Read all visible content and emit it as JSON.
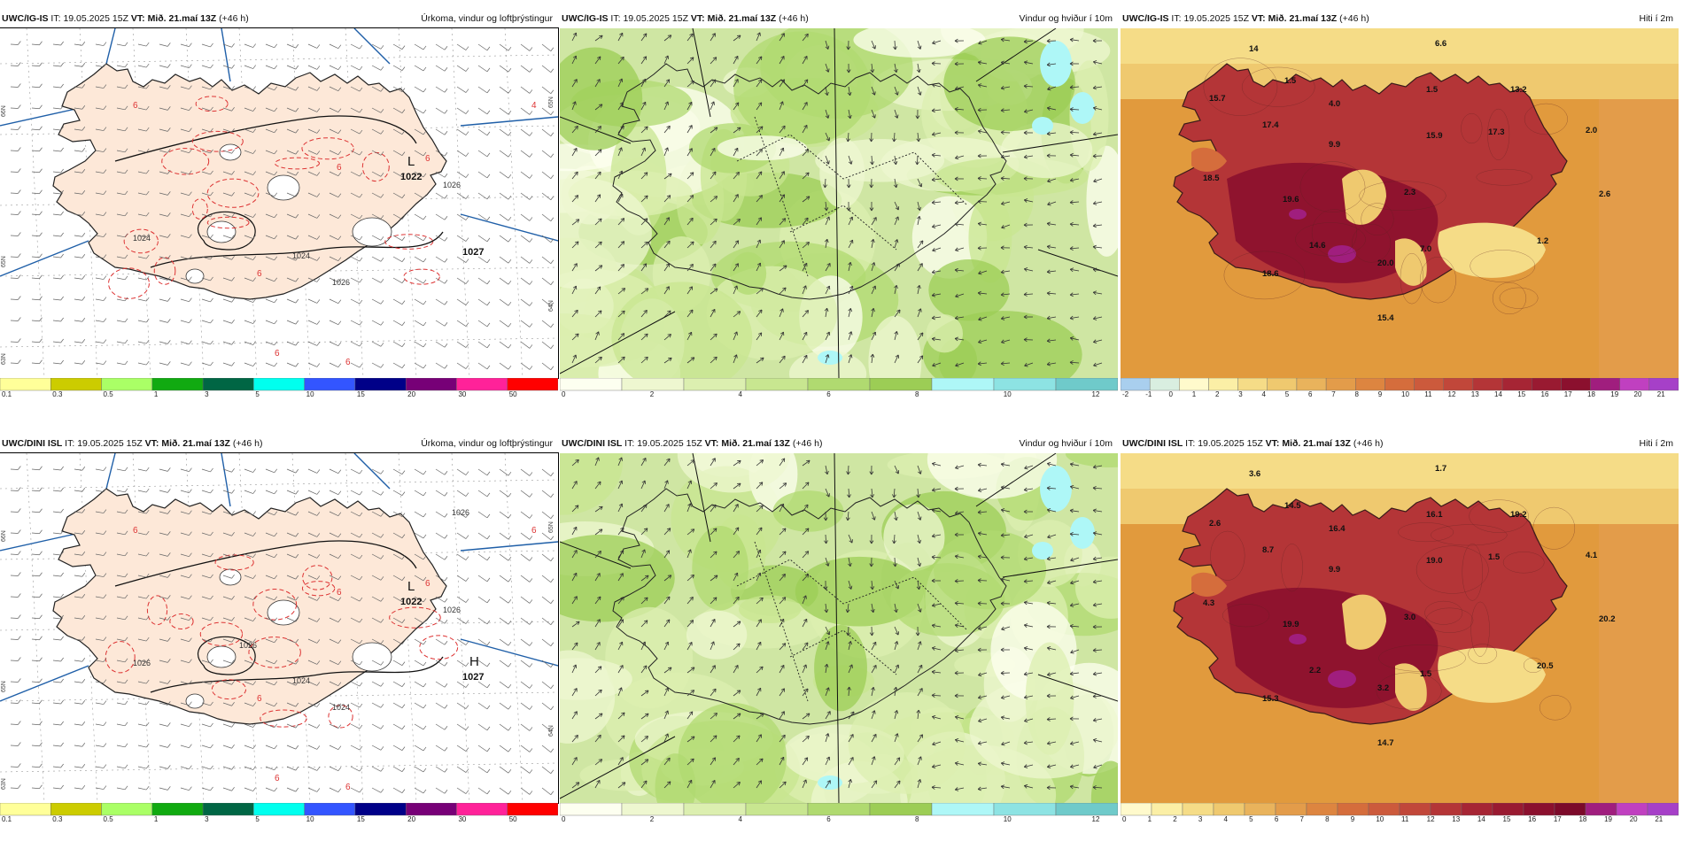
{
  "panels": [
    {
      "id": "igis-precip",
      "model": "UWC/IG-IS",
      "it_label": "IT:",
      "it": "19.05.2025 15Z",
      "vt_label": "VT:",
      "vt": "Mið. 21.maí 13Z",
      "lead": "(+46 h)",
      "title": "Úrkoma, vindur og loftþrýstingur",
      "type": "precip",
      "colorbar": {
        "colors": [
          "#ffff99",
          "#cccc00",
          "#aaff66",
          "#11aa11",
          "#006644",
          "#00ffee",
          "#3355ff",
          "#000088",
          "#770077",
          "#ff2299",
          "#ff0000"
        ],
        "ticks": [
          "0.1",
          "0.3",
          "0.5",
          "1",
          "3",
          "5",
          "10",
          "15",
          "20",
          "30",
          "50"
        ]
      },
      "pressure_labels": [
        {
          "text": "L",
          "value": "1022"
        },
        {
          "text": "",
          "value": "1027"
        }
      ],
      "isobar_labels": [
        "1024",
        "1024",
        "1026",
        "1026"
      ],
      "precip_labels": [
        "6",
        "6",
        "6",
        "6",
        "6",
        "6",
        "4"
      ]
    },
    {
      "id": "igis-wind",
      "model": "UWC/IG-IS",
      "it_label": "IT:",
      "it": "19.05.2025 15Z",
      "vt_label": "VT:",
      "vt": "Mið. 21.maí 13Z",
      "lead": "(+46 h)",
      "title": "Vindur og hviður í 10m",
      "type": "wind",
      "colorbar": {
        "colors": [
          "#fdfff0",
          "#eef7d0",
          "#dcefb0",
          "#c8e690",
          "#b0da70",
          "#9ccd55",
          "#aef7f7",
          "#8de3e3",
          "#6fcaca"
        ],
        "ticks": [
          "0",
          "2",
          "4",
          "6",
          "8",
          "10",
          "12"
        ]
      }
    },
    {
      "id": "igis-temp",
      "model": "UWC/IG-IS",
      "it_label": "IT:",
      "it": "19.05.2025 15Z",
      "vt_label": "VT:",
      "vt": "Mið. 21.maí 13Z",
      "lead": "(+46 h)",
      "title": "Hiti í 2m",
      "type": "temp",
      "colorbar": {
        "colors": [
          "#a9cfee",
          "#d9eee0",
          "#fffacc",
          "#fbefa6",
          "#f5dc87",
          "#efc96f",
          "#e9b35c",
          "#e39c4a",
          "#dd8540",
          "#d56d3c",
          "#cc5a3c",
          "#c1473a",
          "#b43537",
          "#a62534",
          "#991a31",
          "#8b102e",
          "#a01e7e",
          "#c040c0",
          "#a640c8"
        ],
        "ticks": [
          "-2",
          "-1",
          "0",
          "1",
          "2",
          "3",
          "4",
          "5",
          "6",
          "7",
          "8",
          "9",
          "10",
          "11",
          "12",
          "13",
          "14",
          "15",
          "16",
          "17",
          "18",
          "19",
          "20",
          "21"
        ]
      },
      "value_labels": [
        "6.6",
        "14",
        "1.5",
        "15.7",
        "4.0",
        "1.5",
        "13.2",
        "17.4",
        "9.9",
        "15.9",
        "17.3",
        "2.0",
        "18.5",
        "19.6",
        "2.3",
        "2.6",
        "14.6",
        "20.0",
        "7.0",
        "1.2",
        "18.6",
        "15.4"
      ]
    },
    {
      "id": "dini-precip",
      "model": "UWC/DINI ISL",
      "it_label": "IT:",
      "it": "19.05.2025 15Z",
      "vt_label": "VT:",
      "vt": "Mið. 21.maí 13Z",
      "lead": "(+46 h)",
      "title": "Úrkoma, vindur og loftþrýstingur",
      "type": "precip",
      "colorbar": {
        "colors": [
          "#ffff99",
          "#cccc00",
          "#aaff66",
          "#11aa11",
          "#006644",
          "#00ffee",
          "#3355ff",
          "#000088",
          "#770077",
          "#ff2299",
          "#ff0000"
        ],
        "ticks": [
          "0.1",
          "0.3",
          "0.5",
          "1",
          "3",
          "5",
          "10",
          "15",
          "20",
          "30",
          "50"
        ]
      },
      "pressure_labels": [
        {
          "text": "L",
          "value": "1022"
        },
        {
          "text": "H",
          "value": "1027"
        }
      ],
      "isobar_labels": [
        "1026",
        "1024",
        "1024",
        "1026",
        "1026",
        "1026"
      ],
      "precip_labels": [
        "6",
        "6",
        "6",
        "6",
        "6",
        "6",
        "6"
      ]
    },
    {
      "id": "dini-wind",
      "model": "UWC/DINI ISL",
      "it_label": "IT:",
      "it": "19.05.2025 15Z",
      "vt_label": "VT:",
      "vt": "Mið. 21.maí 13Z",
      "lead": "(+46 h)",
      "title": "Vindur og hviður í 10m",
      "type": "wind",
      "colorbar": {
        "colors": [
          "#fdfff0",
          "#eef7d0",
          "#dcefb0",
          "#c8e690",
          "#b0da70",
          "#9ccd55",
          "#aef7f7",
          "#8de3e3",
          "#6fcaca"
        ],
        "ticks": [
          "0",
          "2",
          "4",
          "6",
          "8",
          "10",
          "12"
        ]
      }
    },
    {
      "id": "dini-temp",
      "model": "UWC/DINI ISL",
      "it_label": "IT:",
      "it": "19.05.2025 15Z",
      "vt_label": "VT:",
      "vt": "Mið. 21.maí 13Z",
      "lead": "(+46 h)",
      "title": "Hiti í 2m",
      "type": "temp",
      "colorbar": {
        "colors": [
          "#fffacc",
          "#fbefa6",
          "#f5dc87",
          "#efc96f",
          "#e9b35c",
          "#e39c4a",
          "#dd8540",
          "#d56d3c",
          "#cc5a3c",
          "#c1473a",
          "#b43537",
          "#a62534",
          "#991a31",
          "#8b102e",
          "#7c0a2a",
          "#a01e7e",
          "#c040c0",
          "#a640c8"
        ],
        "ticks": [
          "0",
          "1",
          "2",
          "3",
          "4",
          "5",
          "6",
          "7",
          "8",
          "9",
          "10",
          "11",
          "12",
          "13",
          "14",
          "15",
          "16",
          "17",
          "18",
          "19",
          "20",
          "21"
        ]
      },
      "value_labels": [
        "1.7",
        "3.6",
        "14.5",
        "2.6",
        "16.4",
        "16.1",
        "19.2",
        "8.7",
        "9.9",
        "19.0",
        "1.5",
        "4.1",
        "4.3",
        "19.9",
        "3.0",
        "20.2",
        "2.2",
        "3.2",
        "1.5",
        "20.5",
        "15.3",
        "14.7"
      ]
    }
  ]
}
